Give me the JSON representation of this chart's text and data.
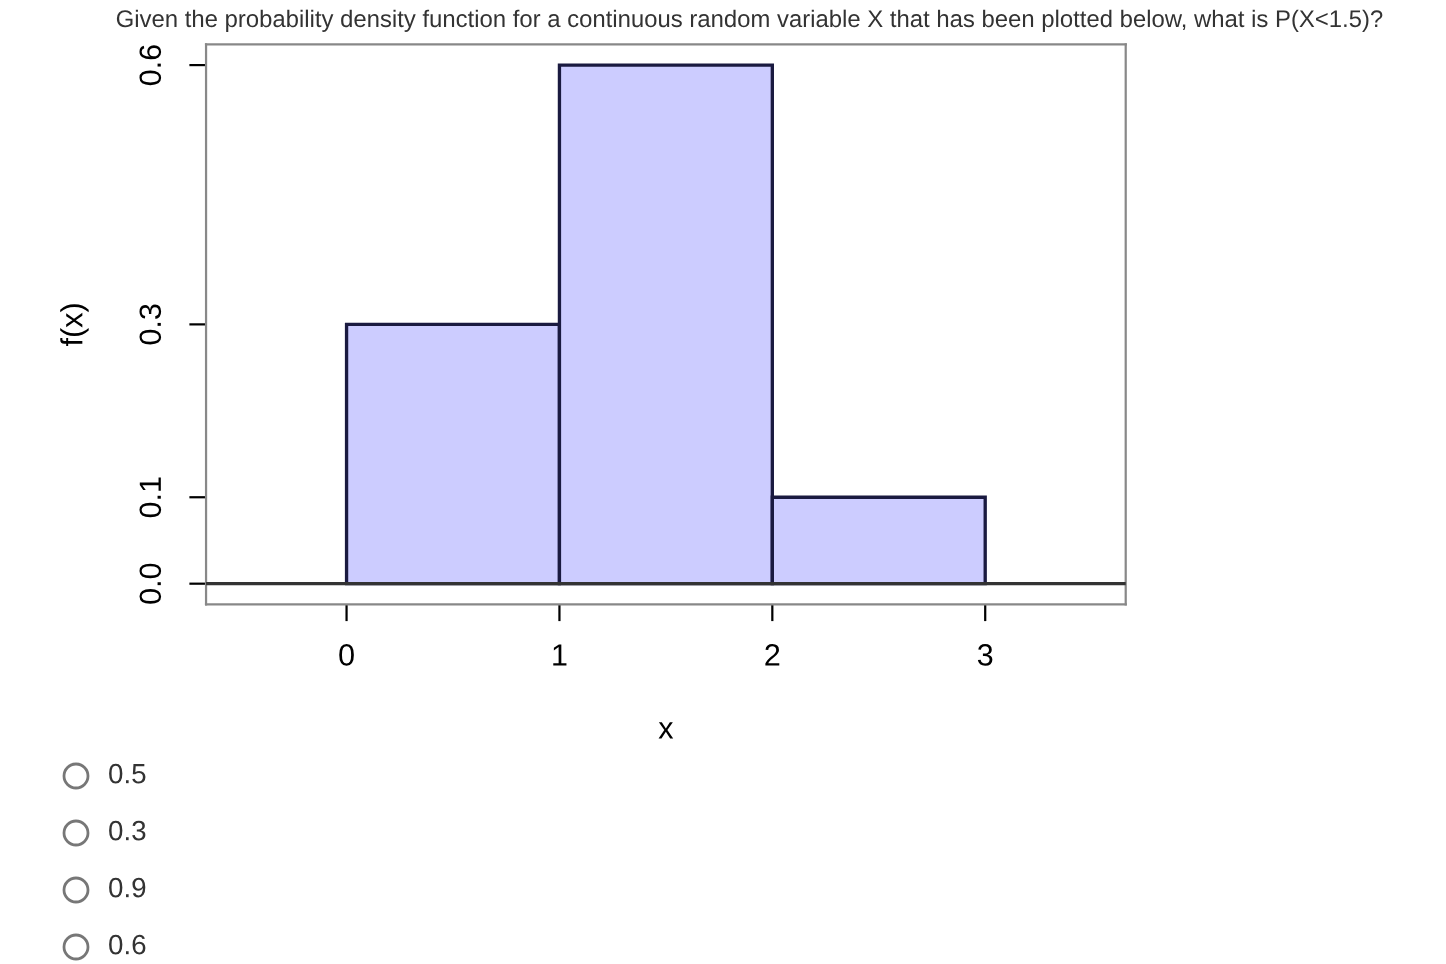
{
  "chart_data": {
    "type": "histogram",
    "title": "Given the probability density function for a continuous random variable X that has been plotted below, what is P(X<1.5)?",
    "xlabel": "x",
    "ylabel": "f(x)",
    "bins": [
      0,
      1,
      2,
      3
    ],
    "values": [
      0.3,
      0.6,
      0.1
    ],
    "color": "#ccccff",
    "xlim": [
      -0.66,
      3.66
    ],
    "ylim": [
      -0.024,
      0.624
    ],
    "xticks": [
      0,
      1,
      2,
      3
    ],
    "yticks": [
      {
        "value": 0,
        "label": "0.0"
      },
      0.1,
      0.3,
      0.6
    ],
    "ref_lines": [
      {
        "axis": "y",
        "value": 0,
        "color": "#333333"
      }
    ],
    "grid": false,
    "legend": false,
    "annotations": [
      "0.5",
      "0.3",
      "0.9",
      "0.6"
    ]
  }
}
